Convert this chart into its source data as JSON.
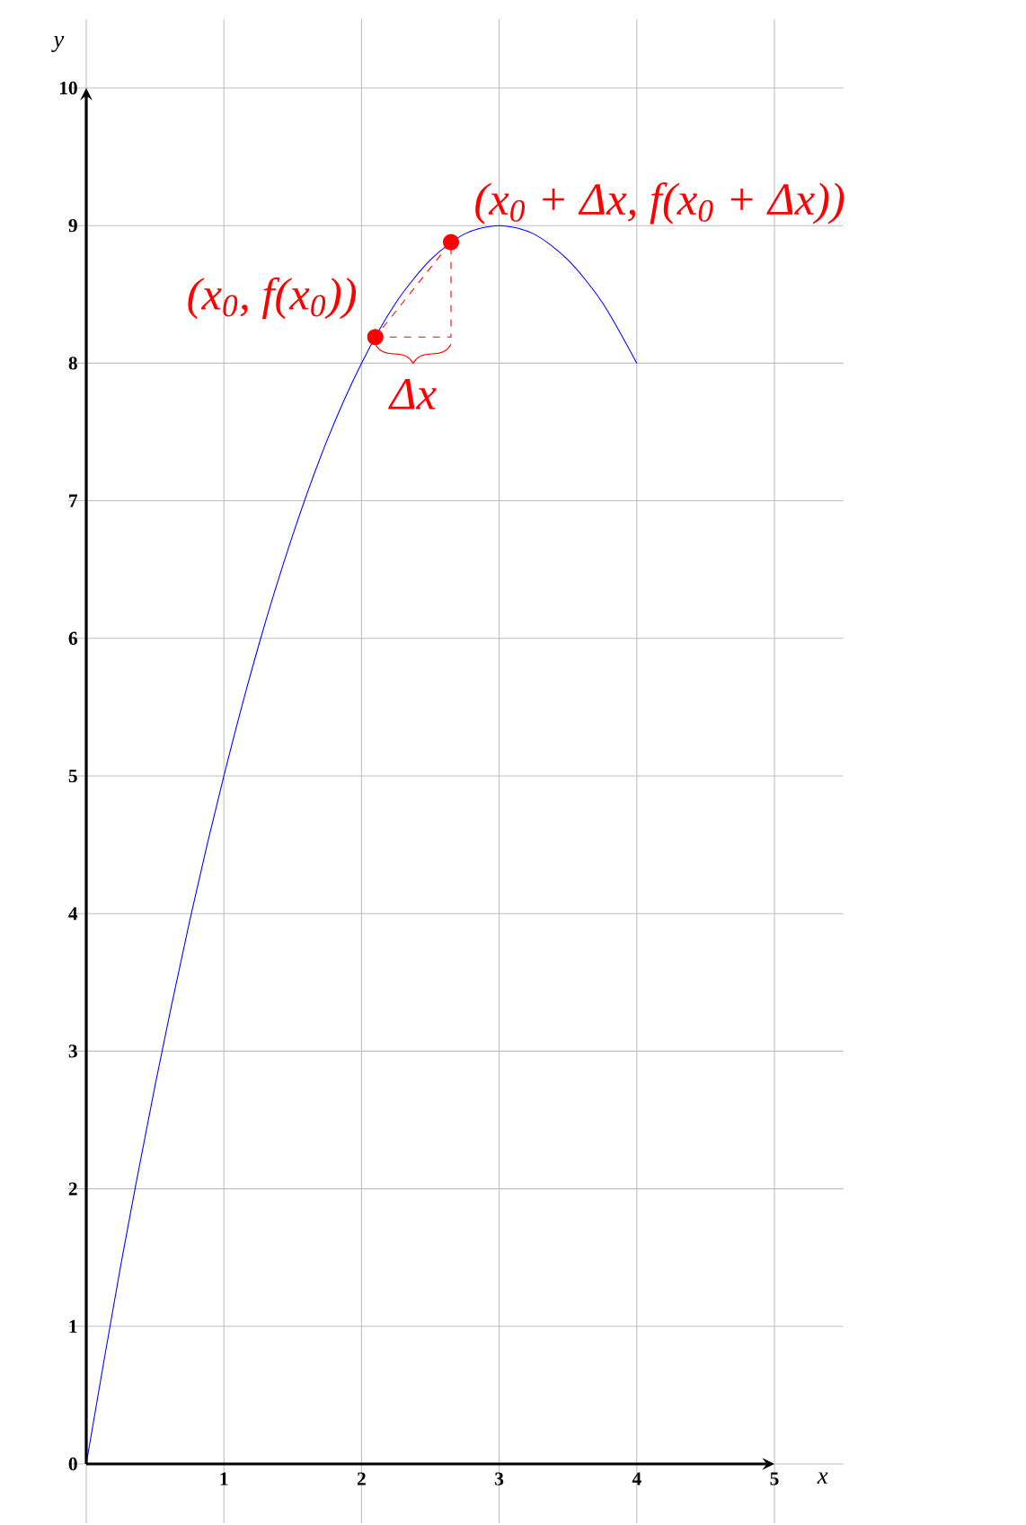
{
  "chart_data": {
    "type": "line",
    "xlabel": "x",
    "ylabel": "y",
    "xlim": [
      -0.13,
      5.5
    ],
    "ylim": [
      -0.43,
      10.5
    ],
    "xticks": [
      {
        "value": 0,
        "label": null
      },
      1,
      2,
      3,
      4,
      5
    ],
    "yticks": [
      0,
      1,
      2,
      3,
      4,
      5,
      6,
      7,
      8,
      9,
      10
    ],
    "grid": true,
    "series": [
      {
        "color": "#0000ff",
        "x": [
          0,
          0.25,
          0.5,
          0.75,
          1,
          1.25,
          1.5,
          1.75,
          2,
          2.25,
          2.5,
          2.75,
          3,
          3.25,
          3.5,
          3.75,
          4
        ],
        "values": [
          0,
          1.44,
          2.75,
          3.94,
          5,
          5.94,
          6.75,
          7.44,
          8,
          8.44,
          8.75,
          8.94,
          9,
          8.94,
          8.75,
          8.44,
          8
        ]
      },
      {
        "type": "scatter",
        "color": "#ff0000",
        "marker": "circle",
        "x": [
          2.1,
          2.65
        ],
        "values": [
          8.19,
          8.88
        ]
      }
    ],
    "annotations": [
      {
        "text": "(x$_{0}$, f(x$_{0}$))",
        "x": 2.1,
        "y": 8.19
      },
      {
        "text": "(x$_{0}$ + Δx, f(x$_{0}$ + Δx))",
        "x": 2.65,
        "y": 8.88
      },
      "Δx"
    ]
  }
}
